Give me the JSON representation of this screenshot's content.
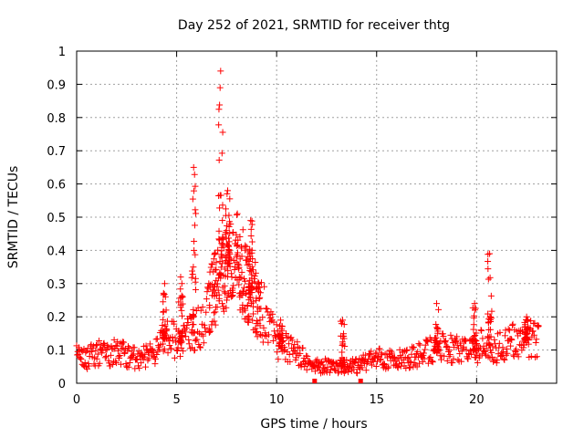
{
  "chart_data": {
    "type": "scatter",
    "title": "Day 252 of 2021, SRMTID for receiver thtg",
    "xlabel": "GPS time / hours",
    "ylabel": "SRMTID / TECUs",
    "xlim": [
      0,
      24
    ],
    "ylim": [
      0,
      1
    ],
    "xticks": [
      0,
      5,
      10,
      15,
      20
    ],
    "yticks": [
      0,
      0.1,
      0.2,
      0.3,
      0.4,
      0.5,
      0.6,
      0.7,
      0.8,
      0.9,
      1
    ],
    "xtick_labels": [
      "0",
      "5",
      "10",
      "15",
      "20"
    ],
    "ytick_labels": [
      "0",
      "0.1",
      "0.2",
      "0.3",
      "0.4",
      "0.5",
      "0.6",
      "0.7",
      "0.8",
      "0.9",
      "1"
    ],
    "grid": true,
    "marker": "+",
    "color": "#ff0000",
    "envelope": {
      "x": [
        0,
        0.5,
        1,
        1.5,
        2,
        2.5,
        3,
        3.5,
        4,
        4.5,
        5,
        5.5,
        6,
        6.5,
        7,
        7.5,
        8,
        8.5,
        9,
        9.5,
        10,
        10.5,
        11,
        11.5,
        12,
        12.5,
        13,
        13.5,
        14,
        14.5,
        15,
        15.5,
        16,
        16.5,
        17,
        17.5,
        18,
        18.5,
        19,
        19.5,
        20,
        20.5,
        21,
        21.5,
        22,
        22.5,
        23
      ],
      "y": [
        0.08,
        0.07,
        0.09,
        0.08,
        0.09,
        0.08,
        0.07,
        0.08,
        0.1,
        0.14,
        0.12,
        0.13,
        0.16,
        0.2,
        0.3,
        0.36,
        0.36,
        0.3,
        0.25,
        0.18,
        0.12,
        0.1,
        0.09,
        0.06,
        0.05,
        0.05,
        0.05,
        0.05,
        0.05,
        0.06,
        0.07,
        0.07,
        0.07,
        0.07,
        0.08,
        0.1,
        0.1,
        0.1,
        0.1,
        0.09,
        0.1,
        0.12,
        0.1,
        0.11,
        0.13,
        0.13,
        0.12
      ]
    },
    "peaks": [
      {
        "x": 4.4,
        "y": 0.3
      },
      {
        "x": 5.2,
        "y": 0.32
      },
      {
        "x": 5.85,
        "y": 0.65
      },
      {
        "x": 7.2,
        "y": 0.94
      },
      {
        "x": 7.55,
        "y": 0.58
      },
      {
        "x": 8.7,
        "y": 0.49
      },
      {
        "x": 10.2,
        "y": 0.19
      },
      {
        "x": 13.3,
        "y": 0.19
      },
      {
        "x": 18,
        "y": 0.24
      },
      {
        "x": 19.9,
        "y": 0.24
      },
      {
        "x": 20.65,
        "y": 0.39
      },
      {
        "x": 22.5,
        "y": 0.2
      }
    ],
    "floor_markers": [
      {
        "x": 11.9,
        "y": 0
      },
      {
        "x": 14.2,
        "y": 0
      }
    ]
  }
}
